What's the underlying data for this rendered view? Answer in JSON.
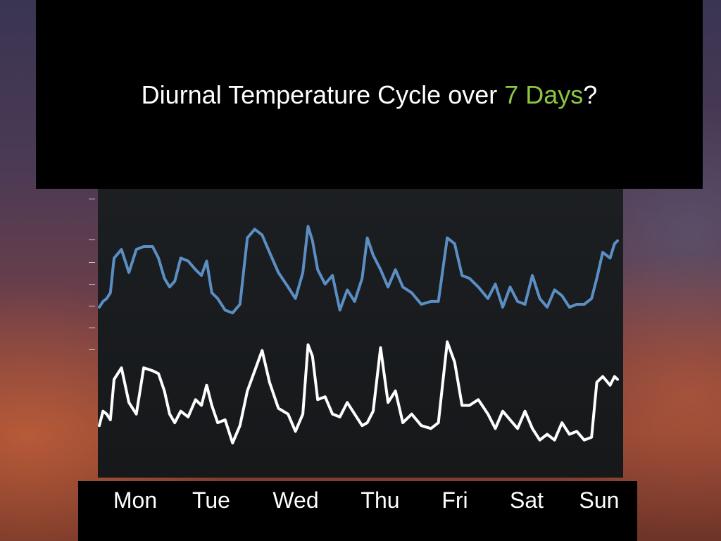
{
  "title": {
    "text": "Diurnal Temperature Cycle over ",
    "accent": "7 Days",
    "suffix": "?"
  },
  "colors": {
    "accent": "#8dc63f",
    "series_upper": "#5b8fc4",
    "series_lower": "#ffffff"
  },
  "chart_data": {
    "type": "line",
    "title": "Diurnal Temperature Cycle over 7 Days?",
    "xlabel": "",
    "ylabel": "",
    "categories": [
      "Mon",
      "Tue",
      "Wed",
      "Thu",
      "Fri",
      "Sat",
      "Sun"
    ],
    "xlim": [
      0,
      7
    ],
    "ylim": [
      0,
      100
    ],
    "grid": false,
    "series": [
      {
        "color": "#5b8fc4",
        "x": [
          0.0,
          0.05,
          0.1,
          0.15,
          0.2,
          0.3,
          0.4,
          0.5,
          0.6,
          0.72,
          0.8,
          0.88,
          0.95,
          1.02,
          1.1,
          1.2,
          1.3,
          1.38,
          1.45,
          1.52,
          1.6,
          1.7,
          1.8,
          1.9,
          2.0,
          2.1,
          2.2,
          2.3,
          2.42,
          2.55,
          2.65,
          2.75,
          2.82,
          2.88,
          2.95,
          3.05,
          3.15,
          3.25,
          3.35,
          3.45,
          3.55,
          3.62,
          3.7,
          3.8,
          3.9,
          4.0,
          4.1,
          4.22,
          4.35,
          4.48,
          4.58,
          4.7,
          4.8,
          4.9,
          5.0,
          5.12,
          5.25,
          5.35,
          5.45,
          5.55,
          5.65,
          5.75,
          5.85,
          5.95,
          6.05,
          6.15,
          6.25,
          6.35,
          6.45,
          6.55,
          6.65,
          6.72,
          6.8,
          6.9,
          6.96,
          7.0
        ],
        "y": [
          59,
          61,
          62,
          64,
          76,
          79,
          71,
          79,
          80,
          80,
          76,
          69,
          66,
          68,
          76,
          75,
          72,
          70,
          75,
          64,
          62,
          58,
          57,
          60,
          83,
          86,
          84,
          78,
          71,
          66,
          62,
          71,
          87,
          82,
          72,
          67,
          70,
          58,
          65,
          61,
          69,
          83,
          77,
          72,
          66,
          72,
          66,
          64,
          60,
          61,
          61,
          83,
          81,
          70,
          69,
          66,
          62,
          67,
          59,
          66,
          61,
          60,
          70,
          62,
          59,
          65,
          63,
          59,
          60,
          60,
          62,
          69,
          78,
          76,
          81,
          82
        ]
      },
      {
        "color": "#ffffff",
        "x": [
          0.0,
          0.05,
          0.1,
          0.15,
          0.2,
          0.3,
          0.4,
          0.5,
          0.6,
          0.72,
          0.8,
          0.88,
          0.95,
          1.02,
          1.1,
          1.2,
          1.3,
          1.38,
          1.45,
          1.52,
          1.6,
          1.7,
          1.8,
          1.9,
          2.0,
          2.1,
          2.2,
          2.3,
          2.42,
          2.55,
          2.65,
          2.75,
          2.82,
          2.88,
          2.95,
          3.05,
          3.15,
          3.25,
          3.35,
          3.45,
          3.55,
          3.62,
          3.7,
          3.8,
          3.9,
          4.0,
          4.1,
          4.22,
          4.35,
          4.48,
          4.58,
          4.7,
          4.8,
          4.9,
          5.0,
          5.12,
          5.25,
          5.35,
          5.45,
          5.55,
          5.65,
          5.75,
          5.85,
          5.95,
          6.05,
          6.15,
          6.25,
          6.35,
          6.45,
          6.55,
          6.65,
          6.72,
          6.8,
          6.9,
          6.96,
          7.0
        ],
        "y": [
          18,
          23,
          22,
          20,
          34,
          38,
          26,
          22,
          38,
          37,
          36,
          30,
          22,
          19,
          23,
          21,
          27,
          25,
          32,
          25,
          19,
          20,
          12,
          18,
          30,
          37,
          44,
          33,
          24,
          22,
          16,
          22,
          46,
          42,
          27,
          28,
          22,
          21,
          26,
          22,
          18,
          19,
          23,
          45,
          26,
          30,
          19,
          22,
          18,
          17,
          19,
          47,
          40,
          25,
          25,
          27,
          22,
          17,
          23,
          20,
          17,
          23,
          17,
          13,
          15,
          13,
          19,
          15,
          16,
          13,
          14,
          33,
          35,
          32,
          35,
          34
        ]
      }
    ]
  }
}
